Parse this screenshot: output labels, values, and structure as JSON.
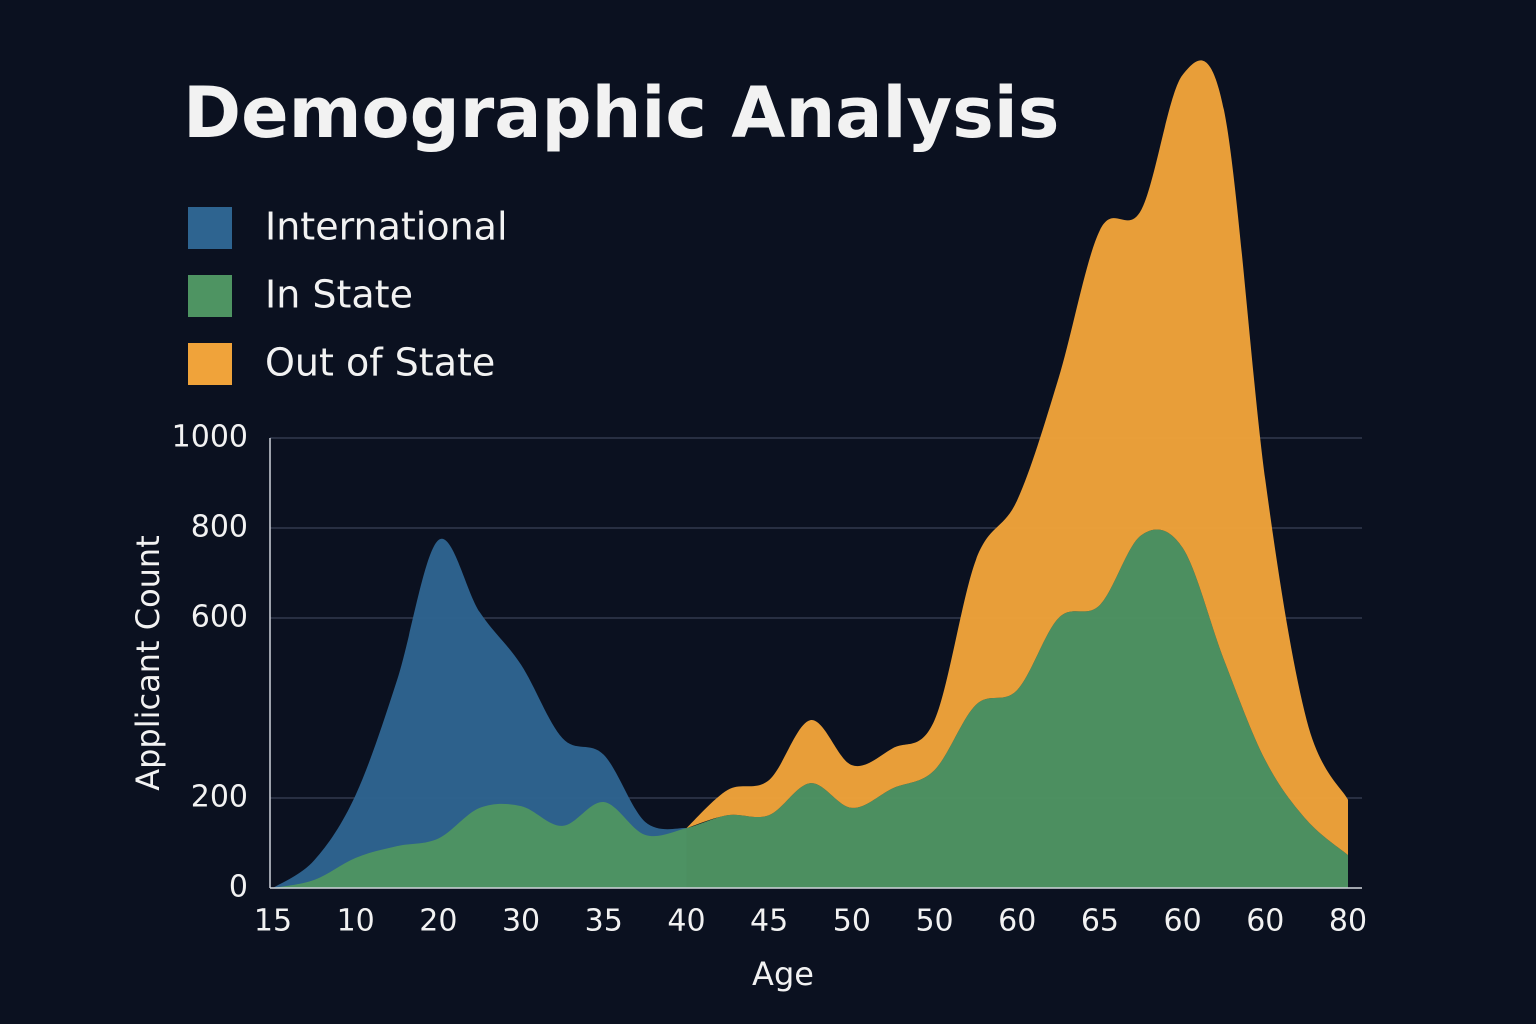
{
  "chart_data": {
    "type": "area",
    "title": "Demographic Analysis",
    "x_label": "Age",
    "y_label": "Applicant Count",
    "categories": [
      "15",
      null,
      "10",
      null,
      "20",
      null,
      "30",
      null,
      "35",
      null,
      "40",
      null,
      "45",
      null,
      "50",
      null,
      "50",
      null,
      "60",
      null,
      "65",
      null,
      "60",
      null,
      "60",
      null,
      "80"
    ],
    "series": [
      {
        "name": "International",
        "color": "#2e6490",
        "values": [
          0,
          62,
          207,
          462,
          773,
          613,
          496,
          333,
          296,
          147,
          133,
          null,
          null,
          null,
          null,
          null,
          null,
          null,
          null,
          null,
          null,
          null,
          null,
          null,
          null,
          null,
          null
        ]
      },
      {
        "name": "In State",
        "color": "#4e9462",
        "values": [
          0,
          18,
          67,
          93,
          110,
          178,
          182,
          138,
          191,
          118,
          133,
          162,
          162,
          233,
          178,
          222,
          262,
          407,
          440,
          600,
          629,
          784,
          756,
          507,
          284,
          151,
          73
        ]
      },
      {
        "name": "Out of State",
        "color": "#f0a33a",
        "stacked": true,
        "values": [
          null,
          null,
          null,
          null,
          null,
          null,
          null,
          null,
          null,
          null,
          0,
          56,
          78,
          140,
          95,
          89,
          111,
          322,
          422,
          533,
          833,
          723,
          1051,
          1222,
          623,
          222,
          123
        ]
      }
    ],
    "ylim": [
      0,
      1000
    ],
    "yticks": [
      0,
      200,
      600,
      800,
      1000
    ],
    "grid": true
  }
}
